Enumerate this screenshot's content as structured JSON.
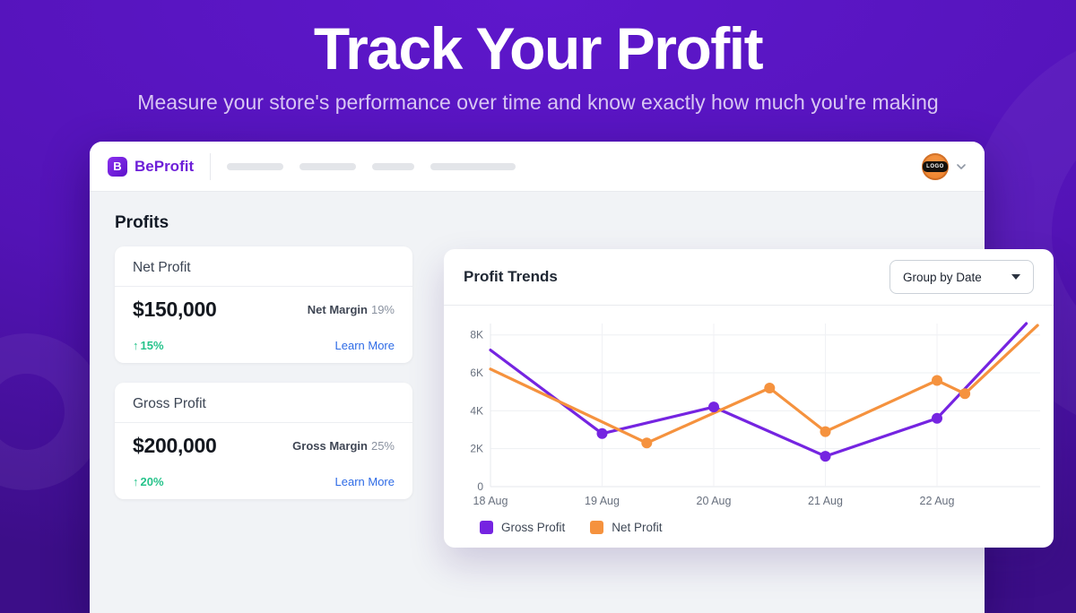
{
  "hero": {
    "title": "Track Your Profit",
    "subtitle": "Measure your store's performance over time and know exactly how much you're making"
  },
  "topbar": {
    "brand": "BeProfit",
    "logo_letter": "B",
    "avatar_text": "LOGO"
  },
  "page": {
    "section_title": "Profits"
  },
  "stat_cards": [
    {
      "title": "Net Profit",
      "value": "$150,000",
      "margin_label": "Net Margin",
      "margin_value": "19%",
      "change_arrow": "↑",
      "change": "15%",
      "link": "Learn More"
    },
    {
      "title": "Gross Profit",
      "value": "$200,000",
      "margin_label": "Gross Margin",
      "margin_value": "25%",
      "change_arrow": "↑",
      "change": "20%",
      "link": "Learn More"
    }
  ],
  "trends": {
    "title": "Profit Trends",
    "dropdown_value": "Group by Date"
  },
  "chart_data": {
    "type": "line",
    "title": "Profit Trends",
    "categories": [
      "18 Aug",
      "19 Aug",
      "20 Aug",
      "21 Aug",
      "22 Aug"
    ],
    "yticks": [
      {
        "label": "0",
        "value": 0
      },
      {
        "label": "2K",
        "value": 2
      },
      {
        "label": "4K",
        "value": 4
      },
      {
        "label": "6K",
        "value": 6
      },
      {
        "label": "8K",
        "value": 8
      }
    ],
    "values_unit": "thousands",
    "ylim": [
      0,
      8000
    ],
    "x_unit": "days from 18 Aug",
    "grid": true,
    "legend_position": "bottom-left",
    "series": [
      {
        "name": "Gross Profit",
        "color": "#7524e1",
        "points": [
          {
            "x": 0,
            "y": 7.2,
            "dot": false
          },
          {
            "x": 1,
            "y": 2.8,
            "dot": true
          },
          {
            "x": 2,
            "y": 4.2,
            "dot": true
          },
          {
            "x": 3,
            "y": 1.6,
            "dot": true
          },
          {
            "x": 4,
            "y": 3.6,
            "dot": true
          },
          {
            "x": 4.8,
            "y": 8.6,
            "dot": false
          }
        ]
      },
      {
        "name": "Net Profit",
        "color": "#f5923e",
        "points": [
          {
            "x": 0,
            "y": 6.2,
            "dot": false
          },
          {
            "x": 1.4,
            "y": 2.3,
            "dot": true
          },
          {
            "x": 2.5,
            "y": 5.2,
            "dot": true
          },
          {
            "x": 3,
            "y": 2.9,
            "dot": true
          },
          {
            "x": 4,
            "y": 5.6,
            "dot": true
          },
          {
            "x": 4.25,
            "y": 4.9,
            "dot": true
          },
          {
            "x": 4.9,
            "y": 8.5,
            "dot": false
          }
        ]
      }
    ]
  },
  "colors": {
    "brand_purple": "#6d1fd8",
    "line_gross": "#7524e1",
    "line_net": "#f5923e",
    "positive_green": "#26c38b",
    "link_blue": "#2e6be6",
    "avatar_orange": "#ee8432"
  }
}
